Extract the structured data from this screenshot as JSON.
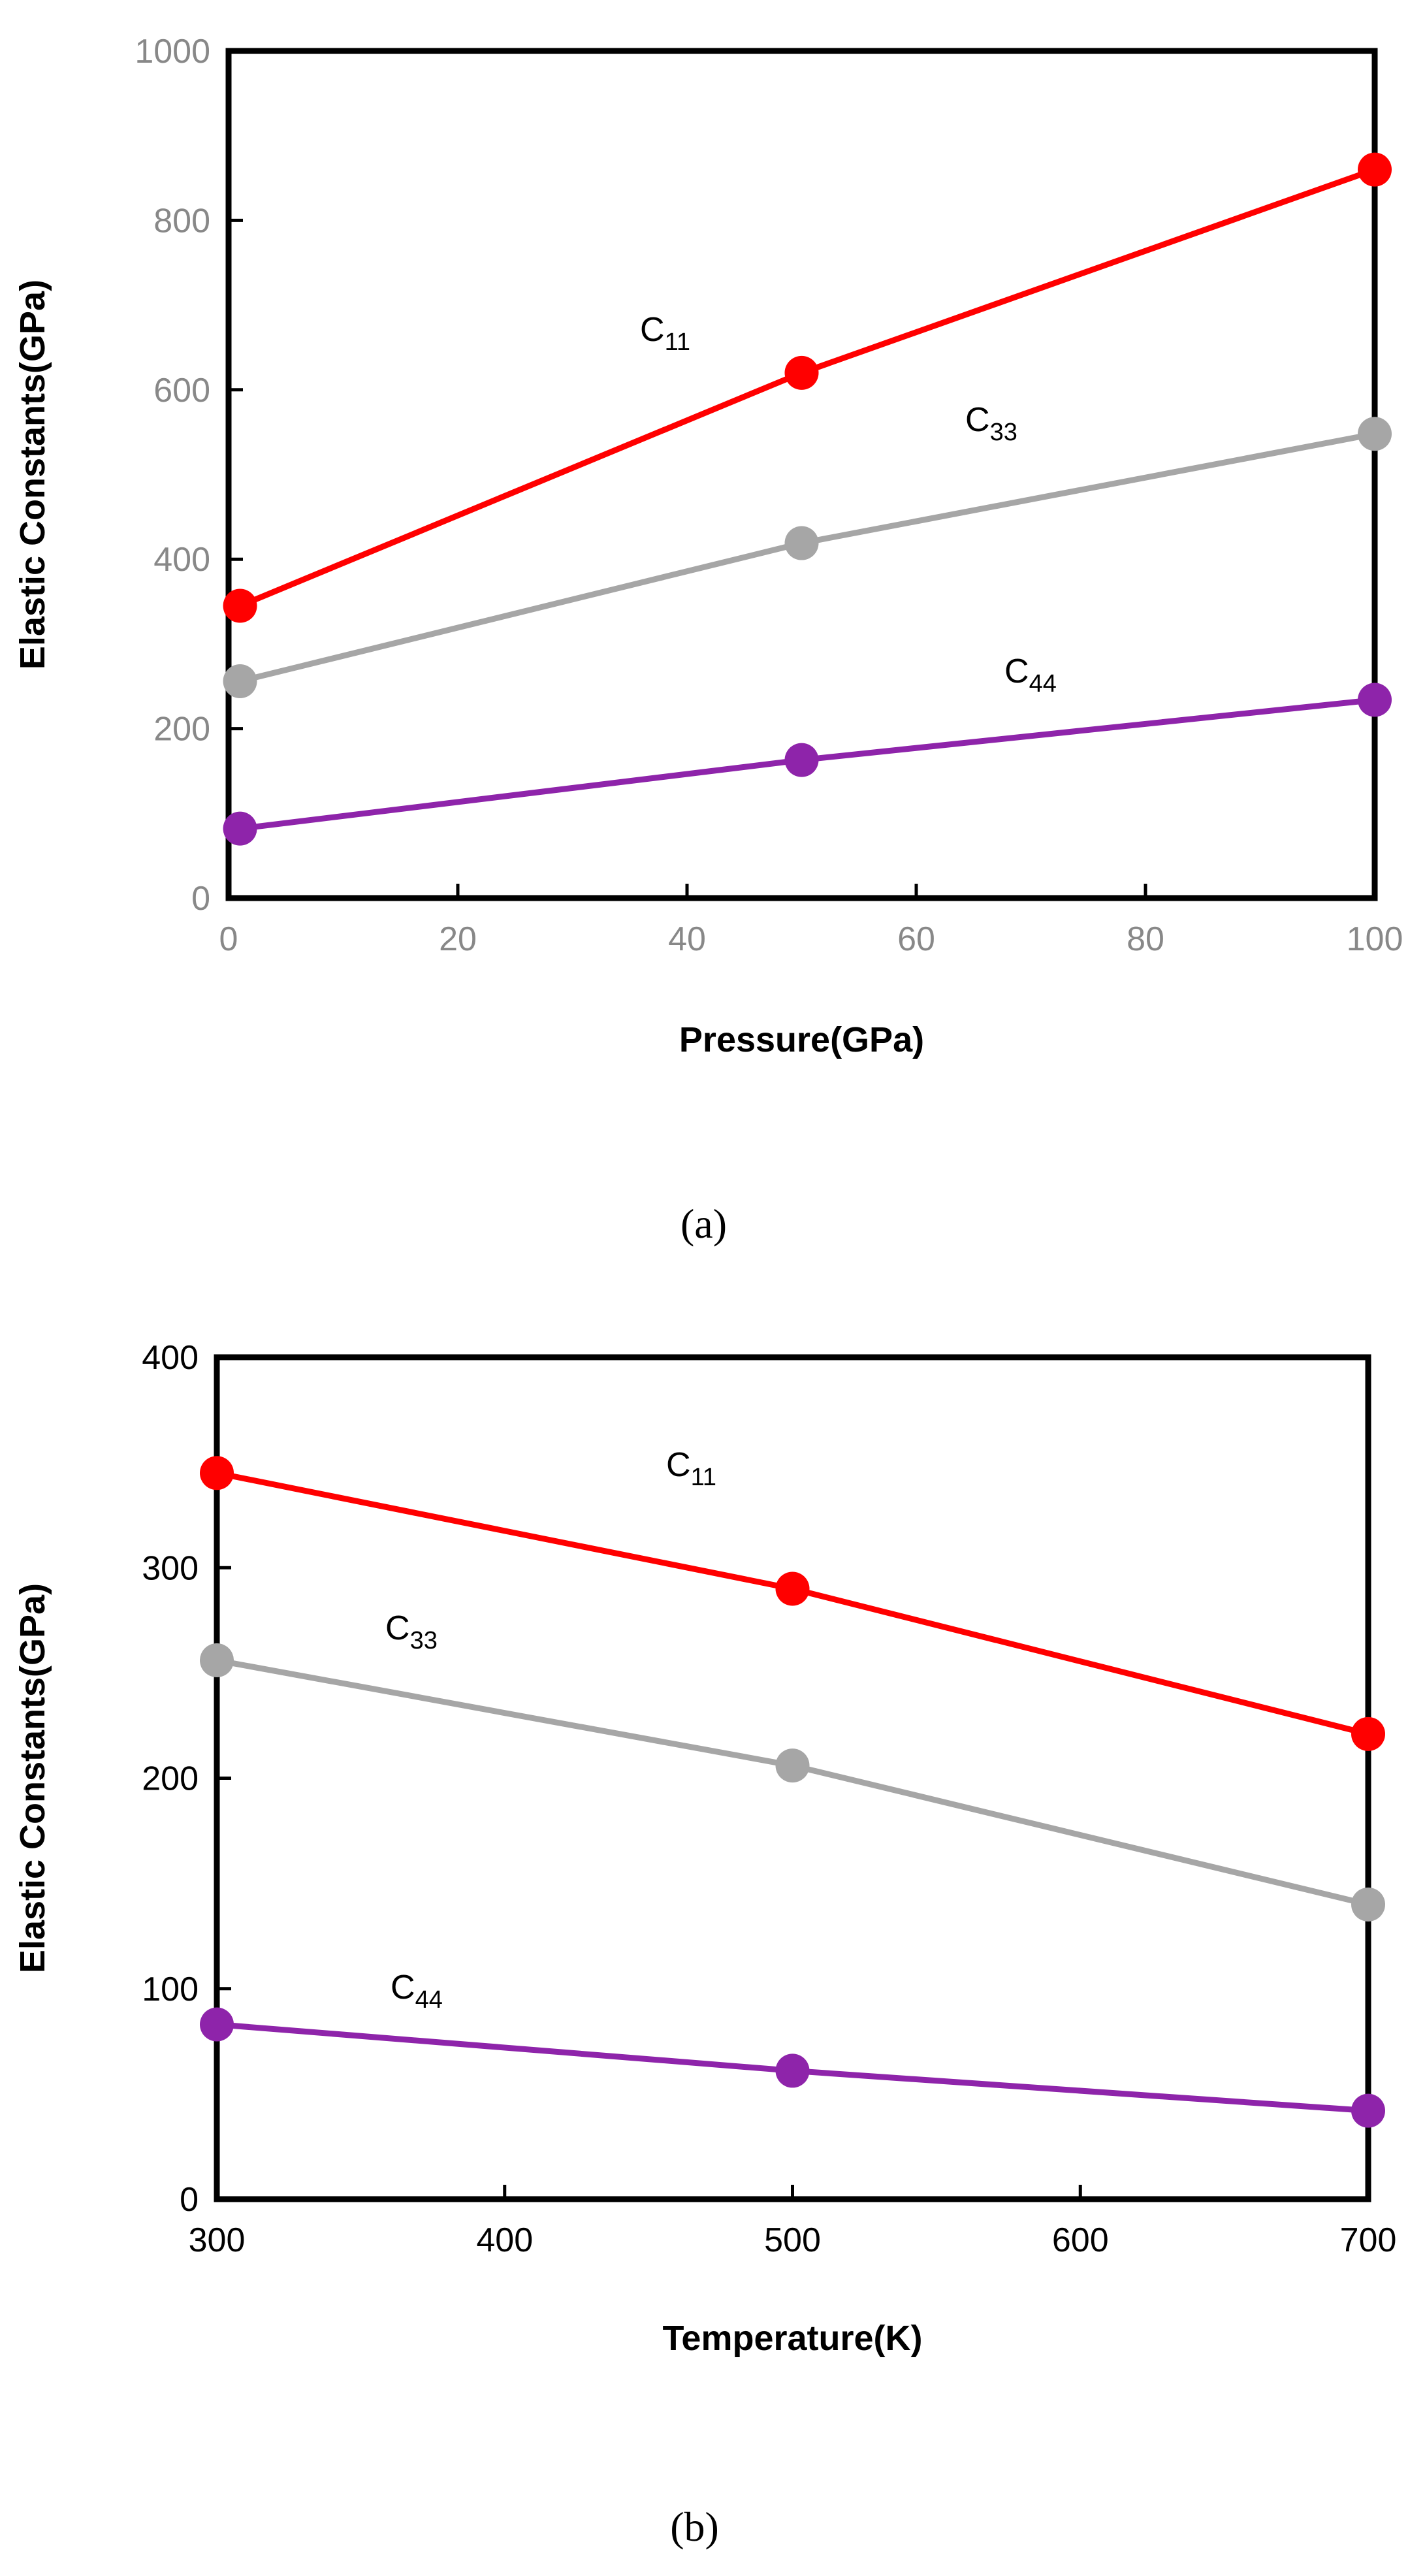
{
  "chart_data": [
    {
      "type": "line",
      "caption": "(a)",
      "xlabel": "Pressure(GPa)",
      "ylabel": "Elastic Constants(GPa)",
      "xlim": [
        0,
        100
      ],
      "ylim": [
        0,
        1000
      ],
      "x_ticks": [
        "0",
        "20",
        "40",
        "60",
        "80",
        "100"
      ],
      "y_ticks": [
        "0",
        "200",
        "400",
        "600",
        "800",
        "1000"
      ],
      "tick_color": "#888888",
      "grid": false,
      "legend": "none",
      "x": [
        1,
        50,
        100
      ],
      "series": [
        {
          "name": "C11",
          "base": "C",
          "sub": "11",
          "color": "#ff0000",
          "values": [
            345,
            620,
            860
          ]
        },
        {
          "name": "C33",
          "base": "C",
          "sub": "33",
          "color": "#a6a6a6",
          "values": [
            256,
            419,
            548
          ]
        },
        {
          "name": "C44",
          "base": "C",
          "sub": "44",
          "color": "#8e24aa",
          "values": [
            82,
            163,
            234
          ]
        }
      ]
    },
    {
      "type": "line",
      "caption": "(b)",
      "xlabel": "Temperature(K)",
      "ylabel": "Elastic Constants(GPa)",
      "xlim": [
        300,
        700
      ],
      "ylim": [
        0,
        400
      ],
      "x_ticks": [
        "300",
        "400",
        "500",
        "600",
        "700"
      ],
      "y_ticks": [
        "0",
        "100",
        "200",
        "300",
        "400"
      ],
      "tick_color": "#000000",
      "grid": false,
      "legend": "none",
      "x": [
        300,
        500,
        700
      ],
      "series": [
        {
          "name": "C11",
          "base": "C",
          "sub": "11",
          "color": "#ff0000",
          "values": [
            345,
            290,
            221
          ]
        },
        {
          "name": "C33",
          "base": "C",
          "sub": "33",
          "color": "#a6a6a6",
          "values": [
            256,
            206,
            140
          ]
        },
        {
          "name": "C44",
          "base": "C",
          "sub": "44",
          "color": "#8e24aa",
          "values": [
            83,
            61,
            42
          ]
        }
      ]
    }
  ]
}
